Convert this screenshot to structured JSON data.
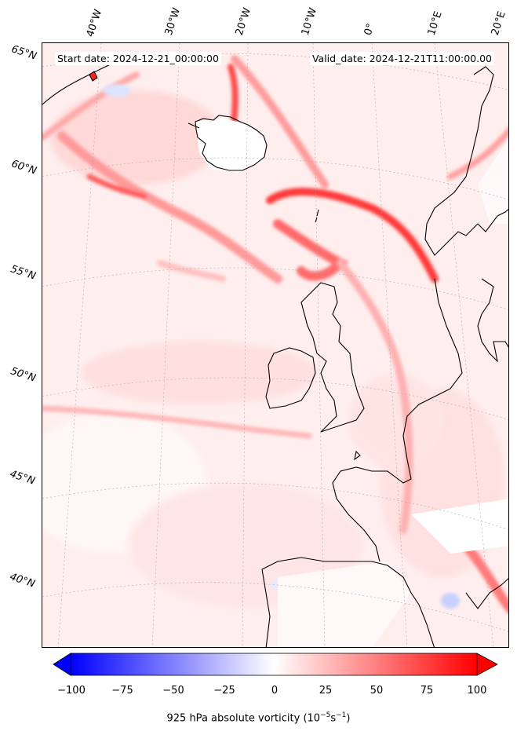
{
  "header": {
    "start_date": "Start date: 2024-12-21_00:00:00",
    "valid_date": "Valid_date: 2024-12-21T11:00:00.00"
  },
  "map": {
    "projection": "lambert-conformal",
    "longitude_labels": [
      "40°W",
      "30°W",
      "20°W",
      "10°W",
      "0°",
      "10°E",
      "20°E"
    ],
    "latitude_labels": [
      "65°N",
      "60°N",
      "55°N",
      "50°N",
      "45°N",
      "40°N"
    ],
    "gridlines": "dotted-grey",
    "coastline_color": "#000000",
    "field": "925 hPa absolute vorticity",
    "colormap": "bwr",
    "vmin": -100,
    "vmax": 100
  },
  "colorbar": {
    "ticks": [
      "−100",
      "−75",
      "−50",
      "−25",
      "0",
      "25",
      "50",
      "75",
      "100"
    ],
    "label_prefix": "925 hPa absolute vorticity (10",
    "label_exp1": "−5",
    "label_mid": "s",
    "label_exp2": "−1",
    "label_suffix": ")",
    "extend": "both",
    "min_color": "#0000ff",
    "mid_color": "#ffffff",
    "max_color": "#ff0000"
  }
}
